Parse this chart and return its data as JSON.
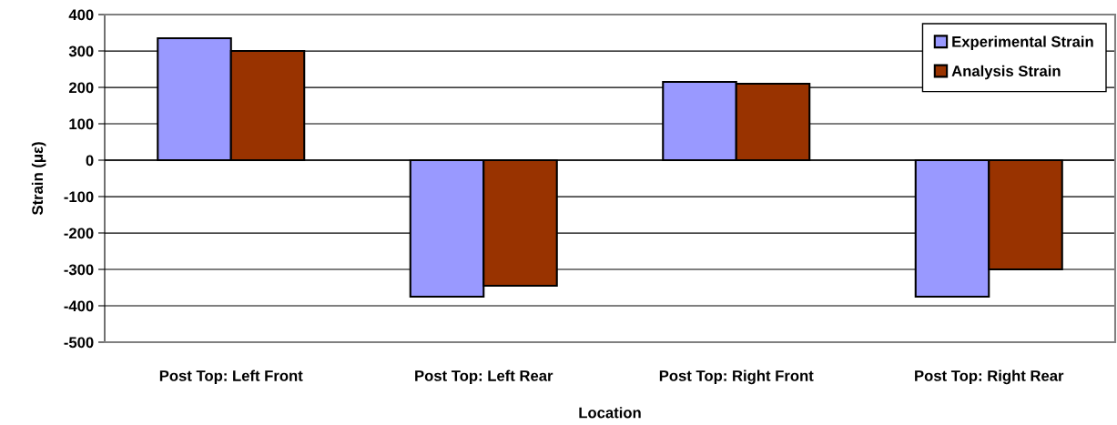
{
  "chart_data": {
    "type": "bar",
    "xlabel": "Location",
    "ylabel": "Strain (με)",
    "categories": [
      "Post Top: Left Front",
      "Post Top: Left Rear",
      "Post Top: Right Front",
      "Post Top: Right Rear"
    ],
    "series": [
      {
        "name": "Experimental Strain",
        "color": "#9999ff",
        "values": [
          335,
          -375,
          215,
          -375
        ]
      },
      {
        "name": "Analysis Strain",
        "color": "#993300",
        "values": [
          300,
          -345,
          210,
          -300
        ]
      }
    ],
    "ylim": [
      -500,
      400
    ],
    "yticks": [
      -500,
      -400,
      -300,
      -200,
      -100,
      0,
      100,
      200,
      300,
      400
    ],
    "grid": "y",
    "legend": "top right"
  }
}
